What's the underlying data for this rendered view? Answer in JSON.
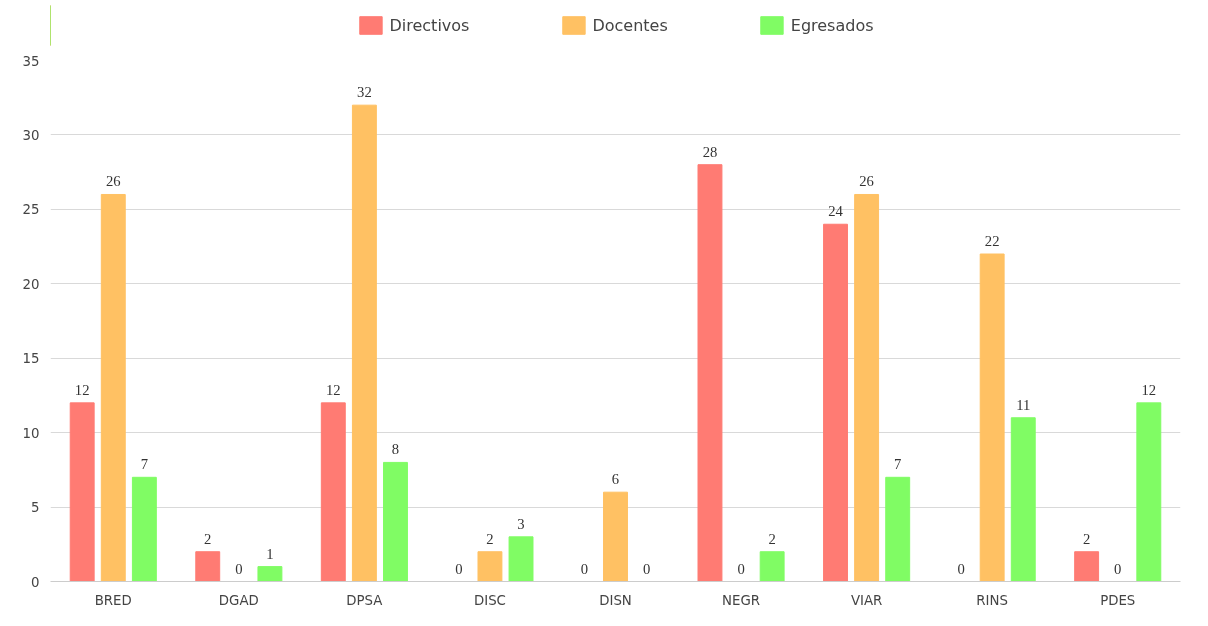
{
  "chart_data": {
    "type": "bar",
    "categories": [
      "BRED",
      "DGAD",
      "DPSA",
      "DISC",
      "DISN",
      "NEGR",
      "VIAR",
      "RINS",
      "PDES"
    ],
    "series": [
      {
        "name": "Directivos",
        "color": "#ff7b73",
        "values": [
          12,
          2,
          12,
          0,
          0,
          28,
          24,
          0,
          2
        ]
      },
      {
        "name": "Docentes",
        "color": "#ffc163",
        "values": [
          26,
          0,
          32,
          2,
          6,
          0,
          26,
          22,
          0
        ]
      },
      {
        "name": "Egresados",
        "color": "#80fc64",
        "values": [
          7,
          1,
          8,
          3,
          0,
          2,
          7,
          11,
          12
        ]
      }
    ],
    "ylim": [
      0,
      35
    ],
    "yticks": [
      0,
      5,
      10,
      15,
      20,
      25,
      30,
      35
    ],
    "grid": "y",
    "legend": "top",
    "data_labels": true
  }
}
